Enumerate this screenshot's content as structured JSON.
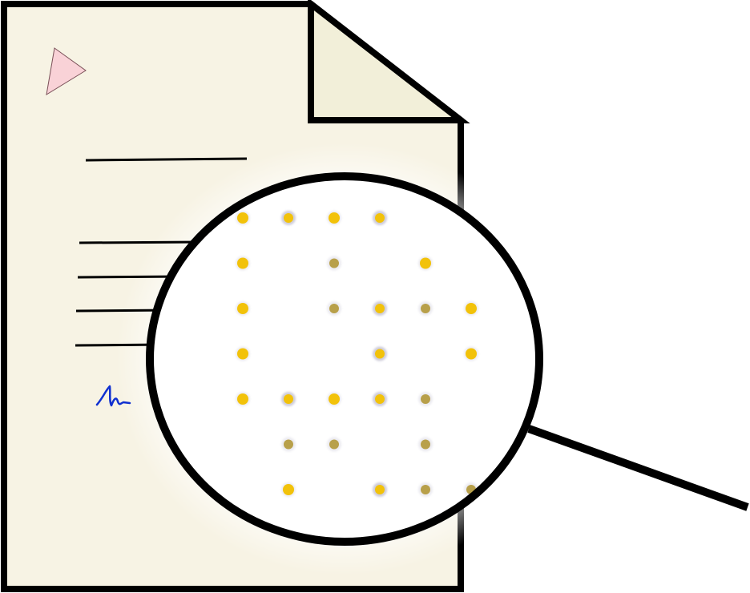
{
  "illustration": {
    "subject": "document-under-magnifier",
    "icons": [
      "document-icon",
      "folded-corner-icon",
      "play-triangle-icon",
      "signature-icon",
      "magnifier-icon",
      "yellow-dot-pattern"
    ]
  },
  "colors": {
    "paper": "#f7f3e4",
    "paper_fold": "#f2efd9",
    "outline": "#000000",
    "triangle_fill": "#f9d2d7",
    "signature": "#1030d0",
    "lens": "#ffffff",
    "dot_bright": "#f2c20a",
    "dot_muted": "#b8a04a",
    "dot_halo": "#c9c7d6"
  },
  "dots": {
    "rows": [
      [
        1,
        2,
        1,
        2,
        0,
        0
      ],
      [
        1,
        0,
        3,
        0,
        1,
        0
      ],
      [
        1,
        0,
        3,
        2,
        3,
        1
      ],
      [
        1,
        0,
        0,
        2,
        0,
        1
      ],
      [
        1,
        2,
        1,
        2,
        3,
        0
      ],
      [
        0,
        3,
        3,
        0,
        3,
        0
      ],
      [
        0,
        1,
        0,
        2,
        3,
        3
      ]
    ]
  }
}
